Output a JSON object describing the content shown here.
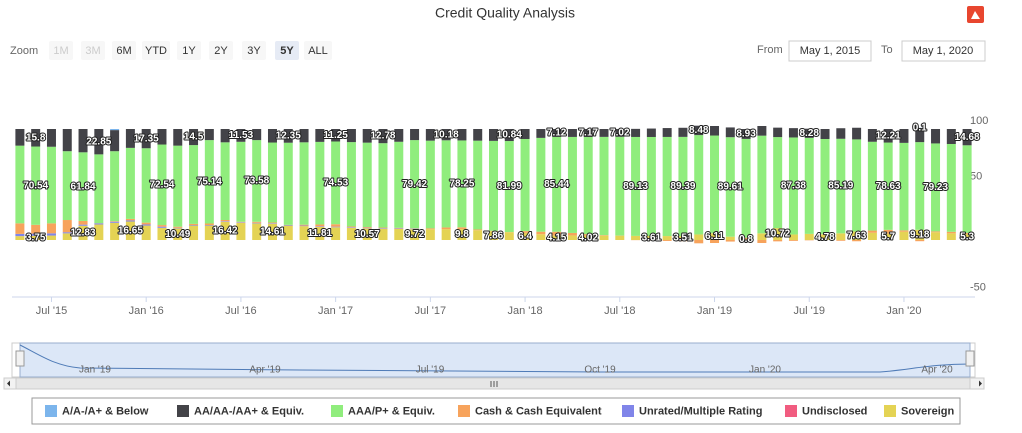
{
  "chart_data": {
    "type": "bar",
    "stacked": true,
    "title": "Credit Quality Analysis",
    "categories": [
      null,
      null,
      "Jul '15",
      null,
      null,
      null,
      null,
      null,
      "Jan '16",
      null,
      null,
      null,
      null,
      null,
      "Jul '16",
      null,
      null,
      null,
      null,
      null,
      "Jan '17",
      null,
      null,
      null,
      null,
      null,
      "Jul '17",
      null,
      null,
      null,
      null,
      null,
      "Jan '18",
      null,
      null,
      null,
      null,
      null,
      "Jul '18",
      null,
      null,
      null,
      null,
      null,
      "Jan '19",
      null,
      null,
      null,
      null,
      null,
      "Jul '19",
      null,
      null,
      null,
      null,
      null,
      "Jan '20",
      null,
      null,
      null,
      null
    ],
    "series": [
      {
        "name": "A/A-/A+ & Below",
        "color": "#7cb5ec",
        "values": [
          0,
          0,
          0,
          0,
          0,
          0,
          1,
          0,
          0,
          0,
          0,
          0,
          0,
          0,
          0,
          0,
          0,
          0,
          0,
          0,
          0,
          0,
          0,
          0,
          0,
          0,
          0,
          0,
          0,
          0,
          0,
          0,
          0,
          0,
          0,
          0,
          0,
          0,
          0,
          0,
          0,
          0,
          0,
          0,
          0,
          0,
          0,
          0,
          0,
          0,
          0,
          0,
          0,
          0,
          0,
          0,
          0,
          0.1,
          0,
          0,
          0
        ],
        "value_labels": [
          null,
          null,
          null,
          null,
          null,
          null,
          null,
          null,
          null,
          null,
          null,
          null,
          null,
          null,
          null,
          null,
          null,
          null,
          null,
          null,
          null,
          null,
          null,
          null,
          null,
          null,
          null,
          null,
          null,
          null,
          null,
          null,
          null,
          null,
          null,
          null,
          null,
          null,
          null,
          null,
          null,
          null,
          null,
          null,
          null,
          null,
          null,
          null,
          null,
          null,
          null,
          null,
          null,
          null,
          null,
          null,
          null,
          "0.1",
          null,
          null,
          null
        ]
      },
      {
        "name": "AA/AA-/AA+ & Equiv.",
        "color": "#434348",
        "values": [
          15,
          15.8,
          16,
          20,
          21,
          22.85,
          19,
          17,
          17.35,
          14,
          15,
          14.5,
          10,
          12,
          11.53,
          10,
          12.2,
          12.35,
          12,
          11.6,
          11.25,
          11.8,
          12.3,
          12.78,
          11.5,
          10,
          10.5,
          10.18,
          10.3,
          10.5,
          10.7,
          10.84,
          9,
          8,
          7.12,
          7.15,
          7.17,
          7.1,
          7.02,
          7.3,
          7.6,
          8,
          8.2,
          8.48,
          8.6,
          8.8,
          8.93,
          8.7,
          8.5,
          8.4,
          8.28,
          9,
          9.5,
          10.5,
          11.5,
          12.21,
          12.5,
          12.8,
          13,
          13.5,
          14.68
        ],
        "value_labels": [
          null,
          "15.8",
          null,
          null,
          null,
          "22.85",
          null,
          null,
          "17.35",
          null,
          null,
          "14.5",
          null,
          null,
          "11.53",
          null,
          null,
          "12.35",
          null,
          null,
          "11.25",
          null,
          null,
          "12.78",
          null,
          null,
          null,
          "10.18",
          null,
          null,
          null,
          "10.84",
          null,
          null,
          "7.12",
          null,
          "7.17",
          null,
          "7.02",
          null,
          null,
          null,
          null,
          "8.48",
          null,
          null,
          "8.93",
          null,
          null,
          null,
          "8.28",
          null,
          null,
          null,
          null,
          "12.21",
          null,
          null,
          null,
          null,
          "14.68"
        ]
      },
      {
        "name": "AAA/P+ & Equiv.",
        "color": "#90ed7d",
        "values": [
          70,
          70.54,
          69,
          62,
          61.84,
          62,
          63,
          64,
          67,
          72.54,
          73,
          71,
          75.14,
          70,
          72,
          73.58,
          72,
          74,
          74.2,
          74.4,
          74.53,
          76,
          76,
          76,
          77.5,
          79.42,
          79,
          78.5,
          78.25,
          80,
          81,
          81.99,
          83,
          84.5,
          85.44,
          86.5,
          87.5,
          88.5,
          89,
          89.13,
          89.2,
          89.3,
          89.39,
          89.5,
          88,
          89.61,
          89,
          88,
          82,
          87.38,
          86.5,
          85.8,
          85.19,
          83,
          80,
          78.63,
          78.8,
          79,
          79.23,
          79.1,
          79
        ],
        "value_labels": [
          null,
          "70.54",
          null,
          null,
          "61.84",
          null,
          null,
          null,
          null,
          "72.54",
          null,
          null,
          "75.14",
          null,
          null,
          "73.58",
          null,
          null,
          null,
          null,
          "74.53",
          null,
          null,
          null,
          null,
          "79.42",
          null,
          null,
          "78.25",
          null,
          null,
          "81.99",
          null,
          null,
          "85.44",
          null,
          null,
          null,
          null,
          "89.13",
          null,
          null,
          "89.39",
          null,
          null,
          "89.61",
          null,
          null,
          null,
          "87.38",
          null,
          null,
          "85.19",
          null,
          null,
          "78.63",
          null,
          null,
          "79.23",
          null,
          null
        ]
      },
      {
        "name": "Cash & Cash Equivalent",
        "color": "#f7a35c",
        "values": [
          9.5,
          7.91,
          9,
          11,
          3.33,
          0.15,
          0.5,
          1.35,
          1.65,
          1.46,
          1.01,
          1,
          1.36,
          1.08,
          0.47,
          0.92,
          0.69,
          0.15,
          0.8,
          1.69,
          2.22,
          0.7,
          0.63,
          0.52,
          0.5,
          0.36,
          0.8,
          1.52,
          1.65,
          0.7,
          0.44,
          0.17,
          1.6,
          2.3,
          3.29,
          2.25,
          1.31,
          0.5,
          0.18,
          -0.13,
          -0.41,
          -0.85,
          -1.1,
          -2.98,
          -2.71,
          -1.41,
          1.27,
          -2.7,
          -1.22,
          -0.78,
          -0.28,
          0.42,
          -0.69,
          -1.13,
          2,
          3.46,
          1.2,
          -1.08,
          0.77,
          1.4,
          1.02
        ]
      },
      {
        "name": "Unrated/Multiple Rating",
        "color": "#8085e9",
        "values": [
          2,
          2,
          2,
          1,
          1,
          1,
          1,
          1,
          1,
          1,
          0.5,
          0.5,
          0.5,
          0.5,
          0.5,
          0.5,
          0.5,
          0.5,
          0.5,
          0.5,
          0.5,
          0.5,
          0.5,
          0.5,
          0.5,
          0.5,
          0,
          0,
          0,
          0,
          0,
          0,
          0,
          0,
          0,
          0,
          0,
          0,
          0,
          0,
          0,
          0,
          0,
          0,
          0,
          0,
          0,
          0,
          0,
          0,
          0,
          0,
          0,
          0,
          0,
          0,
          0,
          0,
          0,
          0,
          0
        ]
      },
      {
        "name": "Undisclosed",
        "color": "#f15c80",
        "values": [
          0,
          0,
          0,
          0,
          0,
          0,
          0,
          0,
          0,
          0,
          0,
          0,
          0,
          0,
          0,
          0,
          0,
          0,
          0,
          0,
          0,
          0,
          0,
          0,
          0,
          0,
          0,
          0,
          0,
          0,
          0,
          0,
          0,
          0,
          0,
          0,
          0,
          0,
          0,
          0,
          0,
          0,
          0,
          0,
          0,
          0,
          0,
          0,
          0,
          0,
          0,
          0,
          0,
          0,
          0,
          0,
          0,
          0,
          0,
          0,
          0
        ]
      },
      {
        "name": "Sovereign",
        "color": "#e4d354",
        "values": [
          3.5,
          3.75,
          4,
          6,
          12.83,
          14,
          15.5,
          16.65,
          13,
          11,
          10.49,
          13,
          13,
          16.42,
          15.5,
          15,
          14.61,
          13,
          12.5,
          11.81,
          11.5,
          11,
          10.57,
          10.2,
          10,
          9.72,
          9.7,
          9.8,
          9.8,
          8.8,
          7.86,
          7,
          6.4,
          5.2,
          4.15,
          4.1,
          4.02,
          3.9,
          3.8,
          3.7,
          3.61,
          3.55,
          3.51,
          5,
          6.11,
          3,
          0.8,
          6,
          10.72,
          5,
          5.5,
          4.78,
          6,
          7.63,
          6.5,
          5.7,
          7.5,
          9.18,
          7,
          6,
          5.3
        ],
        "value_labels": [
          null,
          "3.75",
          null,
          null,
          "12.83",
          null,
          null,
          "16.65",
          null,
          null,
          "10.49",
          null,
          null,
          "16.42",
          null,
          null,
          "14.61",
          null,
          null,
          "11.81",
          null,
          null,
          "10.57",
          null,
          null,
          "9.72",
          null,
          null,
          "9.8",
          null,
          "7.86",
          null,
          "6.4",
          null,
          "4.15",
          null,
          "4.02",
          null,
          null,
          null,
          "3.61",
          null,
          "3.51",
          null,
          "6.11",
          null,
          "0.8",
          null,
          "10.72",
          null,
          null,
          "4.78",
          null,
          "7.63",
          null,
          "5.7",
          null,
          "9.18",
          null,
          null,
          "5.3"
        ]
      }
    ],
    "ylim": [
      -50,
      100
    ],
    "yticks": [
      -50,
      50,
      100
    ],
    "grid": false
  },
  "range_selector": {
    "label": "Zoom",
    "buttons": [
      "1M",
      "3M",
      "6M",
      "YTD",
      "1Y",
      "2Y",
      "3Y",
      "5Y",
      "ALL"
    ],
    "disabled_buttons": [
      "1M",
      "3M"
    ],
    "selected_button": "5Y",
    "from_label": "From",
    "from": "May 1, 2015",
    "to_label": "To",
    "to": "May 1, 2020"
  },
  "navigator": {
    "labels": [
      "Jan '19",
      "Apr '19",
      "Jul '19",
      "Oct '19",
      "Jan '20",
      "Apr '20"
    ]
  }
}
